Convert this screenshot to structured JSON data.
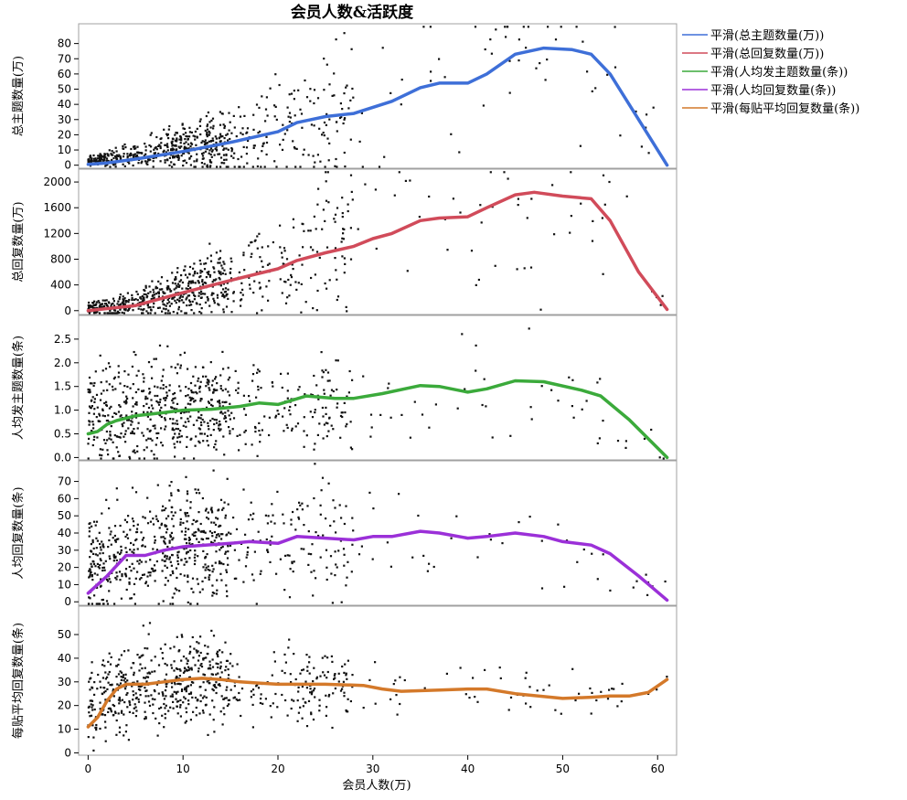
{
  "chart_data": {
    "type": "scatter",
    "title": "会员人数&活跃度",
    "xlabel": "会员人数(万)",
    "xlim": [
      -1,
      62
    ],
    "xticks": [
      0,
      10,
      20,
      30,
      40,
      50,
      60
    ],
    "grid": false,
    "legend_position": "top-right",
    "panels": [
      {
        "ylabel": "总主题数量(万)",
        "ylim": [
          -2,
          93
        ],
        "yticks": [
          0,
          10,
          20,
          30,
          40,
          50,
          60,
          70,
          80
        ],
        "tick_labels": [
          "0",
          "10",
          "20",
          "30",
          "40",
          "50",
          "60",
          "70",
          "80"
        ],
        "series_name": "平滑(总主题数量(万))",
        "color": "#3E6FD8",
        "smooth": [
          [
            0,
            0.5
          ],
          [
            2,
            1.5
          ],
          [
            5,
            4
          ],
          [
            10,
            9
          ],
          [
            15,
            15
          ],
          [
            20,
            22
          ],
          [
            22,
            28
          ],
          [
            25,
            32
          ],
          [
            28,
            34
          ],
          [
            32,
            42
          ],
          [
            35,
            51
          ],
          [
            37,
            54
          ],
          [
            40,
            54
          ],
          [
            42,
            60
          ],
          [
            45,
            73
          ],
          [
            48,
            77
          ],
          [
            51,
            76
          ],
          [
            53,
            73
          ],
          [
            55,
            60
          ],
          [
            58,
            30
          ],
          [
            61,
            0
          ]
        ],
        "density": [
          [
            0,
            3
          ],
          [
            2,
            4
          ],
          [
            5,
            7
          ],
          [
            10,
            12
          ],
          [
            15,
            16
          ],
          [
            20,
            22
          ],
          [
            25,
            32
          ],
          [
            30,
            40
          ],
          [
            35,
            50
          ],
          [
            40,
            55
          ],
          [
            45,
            70
          ],
          [
            50,
            73
          ],
          [
            55,
            65
          ],
          [
            61,
            0
          ]
        ],
        "spread": [
          [
            0,
            1.5
          ],
          [
            5,
            4
          ],
          [
            10,
            7
          ],
          [
            15,
            12
          ],
          [
            20,
            17
          ],
          [
            25,
            22
          ],
          [
            30,
            28
          ],
          [
            40,
            32
          ],
          [
            50,
            30
          ],
          [
            61,
            10
          ]
        ]
      },
      {
        "ylabel": "总回复数量(万)",
        "ylim": [
          -60,
          2200
        ],
        "yticks": [
          0,
          400,
          800,
          1200,
          1600,
          2000
        ],
        "tick_labels": [
          "0",
          "400",
          "800",
          "1200",
          "1600",
          "2000"
        ],
        "series_name": "平滑(总回复数量(万))",
        "color": "#D14B5A",
        "smooth": [
          [
            0,
            0
          ],
          [
            5,
            80
          ],
          [
            10,
            280
          ],
          [
            15,
            470
          ],
          [
            20,
            650
          ],
          [
            22,
            780
          ],
          [
            25,
            900
          ],
          [
            28,
            1000
          ],
          [
            30,
            1120
          ],
          [
            32,
            1200
          ],
          [
            35,
            1400
          ],
          [
            37,
            1440
          ],
          [
            40,
            1460
          ],
          [
            42,
            1600
          ],
          [
            45,
            1800
          ],
          [
            47,
            1840
          ],
          [
            50,
            1780
          ],
          [
            53,
            1740
          ],
          [
            55,
            1400
          ],
          [
            58,
            600
          ],
          [
            61,
            20
          ]
        ],
        "density": [
          [
            0,
            30
          ],
          [
            5,
            120
          ],
          [
            10,
            320
          ],
          [
            15,
            500
          ],
          [
            20,
            680
          ],
          [
            25,
            920
          ],
          [
            30,
            1150
          ],
          [
            35,
            1400
          ],
          [
            40,
            1450
          ],
          [
            45,
            1750
          ],
          [
            50,
            1750
          ],
          [
            55,
            1500
          ],
          [
            61,
            50
          ]
        ],
        "spread": [
          [
            0,
            40
          ],
          [
            5,
            100
          ],
          [
            10,
            200
          ],
          [
            15,
            300
          ],
          [
            20,
            400
          ],
          [
            25,
            550
          ],
          [
            30,
            700
          ],
          [
            40,
            800
          ],
          [
            50,
            800
          ],
          [
            61,
            200
          ]
        ]
      },
      {
        "ylabel": "人均发主题数量(条)",
        "ylim": [
          -0.05,
          3.0
        ],
        "yticks": [
          0,
          0.5,
          1,
          1.5,
          2,
          2.5
        ],
        "tick_labels": [
          "0.0",
          "0.5",
          "1.0",
          "1.5",
          "2.0",
          "2.5"
        ],
        "series_name": "平滑(人均发主题数量(条))",
        "color": "#3BAA3B",
        "smooth": [
          [
            0,
            0.5
          ],
          [
            1,
            0.55
          ],
          [
            2,
            0.7
          ],
          [
            3,
            0.78
          ],
          [
            5,
            0.88
          ],
          [
            8,
            0.95
          ],
          [
            10,
            1.0
          ],
          [
            13,
            1.02
          ],
          [
            16,
            1.08
          ],
          [
            18,
            1.15
          ],
          [
            20,
            1.12
          ],
          [
            23,
            1.3
          ],
          [
            26,
            1.25
          ],
          [
            28,
            1.25
          ],
          [
            31,
            1.35
          ],
          [
            35,
            1.52
          ],
          [
            37,
            1.5
          ],
          [
            40,
            1.38
          ],
          [
            42,
            1.45
          ],
          [
            45,
            1.62
          ],
          [
            48,
            1.6
          ],
          [
            52,
            1.42
          ],
          [
            54,
            1.3
          ],
          [
            57,
            0.8
          ],
          [
            61,
            0
          ]
        ],
        "density": [
          [
            0,
            0.9
          ],
          [
            5,
            1.0
          ],
          [
            10,
            1.05
          ],
          [
            20,
            1.1
          ],
          [
            30,
            1.2
          ],
          [
            40,
            1.3
          ],
          [
            50,
            1.4
          ],
          [
            61,
            0.1
          ]
        ],
        "spread": [
          [
            0,
            0.55
          ],
          [
            5,
            0.6
          ],
          [
            10,
            0.55
          ],
          [
            20,
            0.5
          ],
          [
            30,
            0.5
          ],
          [
            40,
            0.5
          ],
          [
            50,
            0.5
          ],
          [
            61,
            0.2
          ]
        ]
      },
      {
        "ylabel": "人均回复数量(条)",
        "ylim": [
          -2,
          82
        ],
        "yticks": [
          0,
          10,
          20,
          30,
          40,
          50,
          60,
          70
        ],
        "tick_labels": [
          "0",
          "10",
          "20",
          "30",
          "40",
          "50",
          "60",
          "70"
        ],
        "series_name": "平滑(人均回复数量(条))",
        "color": "#9B30D8",
        "smooth": [
          [
            0,
            5
          ],
          [
            2,
            15
          ],
          [
            4,
            27
          ],
          [
            6,
            27
          ],
          [
            8,
            30
          ],
          [
            10,
            32
          ],
          [
            15,
            34
          ],
          [
            17,
            35
          ],
          [
            20,
            34
          ],
          [
            22,
            38
          ],
          [
            25,
            37
          ],
          [
            28,
            36
          ],
          [
            30,
            38
          ],
          [
            32,
            38
          ],
          [
            35,
            41
          ],
          [
            37,
            40
          ],
          [
            40,
            37
          ],
          [
            42,
            38
          ],
          [
            45,
            40
          ],
          [
            48,
            38
          ],
          [
            50,
            35
          ],
          [
            53,
            33
          ],
          [
            55,
            28
          ],
          [
            58,
            15
          ],
          [
            61,
            1
          ]
        ],
        "density": [
          [
            0,
            20
          ],
          [
            5,
            30
          ],
          [
            10,
            33
          ],
          [
            20,
            35
          ],
          [
            30,
            37
          ],
          [
            40,
            37
          ],
          [
            50,
            35
          ],
          [
            61,
            5
          ]
        ],
        "spread": [
          [
            0,
            15
          ],
          [
            5,
            17
          ],
          [
            10,
            17
          ],
          [
            20,
            17
          ],
          [
            30,
            15
          ],
          [
            40,
            15
          ],
          [
            50,
            15
          ],
          [
            61,
            5
          ]
        ]
      },
      {
        "ylabel": "每贴平均回复数量(条)",
        "ylim": [
          -1,
          62
        ],
        "yticks": [
          0,
          10,
          20,
          30,
          40,
          50
        ],
        "tick_labels": [
          "0",
          "10",
          "20",
          "30",
          "40",
          "50"
        ],
        "series_name": "平滑(每贴平均回复数量(条))",
        "color": "#D4792A",
        "smooth": [
          [
            0,
            11
          ],
          [
            1,
            15
          ],
          [
            2,
            22
          ],
          [
            3,
            27
          ],
          [
            4,
            29
          ],
          [
            6,
            29
          ],
          [
            8,
            30
          ],
          [
            10,
            31
          ],
          [
            12,
            31.5
          ],
          [
            14,
            31
          ],
          [
            16,
            30
          ],
          [
            18,
            29.5
          ],
          [
            20,
            29
          ],
          [
            25,
            29
          ],
          [
            29,
            28.5
          ],
          [
            31,
            27
          ],
          [
            33,
            26
          ],
          [
            37,
            26.5
          ],
          [
            40,
            27
          ],
          [
            42,
            27
          ],
          [
            45,
            25
          ],
          [
            50,
            23
          ],
          [
            53,
            23.5
          ],
          [
            55,
            24
          ],
          [
            57,
            24
          ],
          [
            59,
            25.5
          ],
          [
            61,
            31
          ]
        ],
        "density": [
          [
            0,
            20
          ],
          [
            5,
            29
          ],
          [
            10,
            31
          ],
          [
            20,
            29
          ],
          [
            30,
            28
          ],
          [
            40,
            27
          ],
          [
            50,
            24
          ],
          [
            61,
            30
          ]
        ],
        "spread": [
          [
            0,
            8
          ],
          [
            5,
            9
          ],
          [
            10,
            9
          ],
          [
            20,
            8
          ],
          [
            30,
            7
          ],
          [
            40,
            5
          ],
          [
            50,
            5
          ],
          [
            61,
            5
          ]
        ]
      }
    ]
  }
}
